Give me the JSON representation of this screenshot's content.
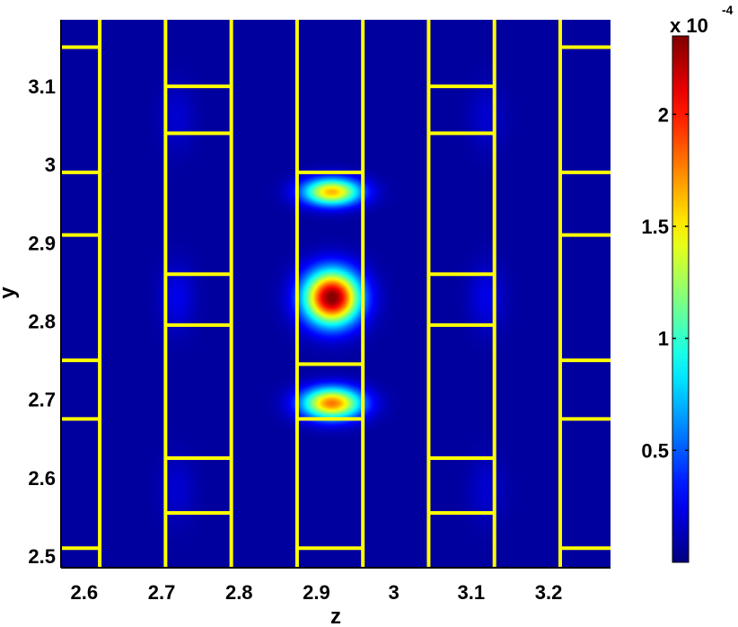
{
  "chart_data": {
    "type": "heatmap",
    "title": "",
    "xlabel": "z",
    "ylabel": "y",
    "xlim": [
      2.57,
      3.28
    ],
    "ylim": [
      2.485,
      3.185
    ],
    "x_ticks": [
      {
        "value": 2.6,
        "label": "2.6"
      },
      {
        "value": 2.7,
        "label": "2.7"
      },
      {
        "value": 2.8,
        "label": "2.8"
      },
      {
        "value": 2.9,
        "label": "2.9"
      },
      {
        "value": 3.0,
        "label": "3"
      },
      {
        "value": 3.1,
        "label": "3.1"
      },
      {
        "value": 3.2,
        "label": "3.2"
      }
    ],
    "y_ticks": [
      {
        "value": 2.5,
        "label": "2.5"
      },
      {
        "value": 2.6,
        "label": "2.6"
      },
      {
        "value": 2.7,
        "label": "2.7"
      },
      {
        "value": 2.8,
        "label": "2.8"
      },
      {
        "value": 2.9,
        "label": "2.9"
      },
      {
        "value": 3.0,
        "label": "3"
      },
      {
        "value": 3.1,
        "label": "3.1"
      }
    ],
    "colormap": "jet",
    "background_color": "#00008b",
    "grid": false,
    "colorbar": {
      "placement": "right",
      "min": 0,
      "max": 0.000235,
      "exponent_label": "x 10",
      "exponent_value": "-4",
      "ticks": [
        {
          "value": 5e-05,
          "label": "0.5"
        },
        {
          "value": 0.0001,
          "label": "1"
        },
        {
          "value": 0.00015,
          "label": "1.5"
        },
        {
          "value": 0.0002,
          "label": "2"
        }
      ]
    },
    "field_peaks": [
      {
        "z": 2.92,
        "y": 2.83,
        "value": 0.000235,
        "sigma_z": 0.025,
        "sigma_y": 0.024
      },
      {
        "z": 2.92,
        "y": 2.965,
        "value": 0.00016,
        "sigma_z": 0.026,
        "sigma_y": 0.012
      },
      {
        "z": 2.92,
        "y": 2.695,
        "value": 0.000175,
        "sigma_z": 0.027,
        "sigma_y": 0.014
      },
      {
        "z": 2.72,
        "y": 2.83,
        "value": 1.8e-05,
        "sigma_z": 0.016,
        "sigma_y": 0.03
      },
      {
        "z": 3.12,
        "y": 2.83,
        "value": 1.8e-05,
        "sigma_z": 0.016,
        "sigma_y": 0.03
      },
      {
        "z": 2.72,
        "y": 3.06,
        "value": 1.2e-05,
        "sigma_z": 0.016,
        "sigma_y": 0.03
      },
      {
        "z": 3.12,
        "y": 3.06,
        "value": 1.2e-05,
        "sigma_z": 0.016,
        "sigma_y": 0.03
      },
      {
        "z": 2.72,
        "y": 2.585,
        "value": 1.2e-05,
        "sigma_z": 0.016,
        "sigma_y": 0.03
      },
      {
        "z": 3.12,
        "y": 2.585,
        "value": 1.2e-05,
        "sigma_z": 0.016,
        "sigma_y": 0.03
      }
    ],
    "structure_outline": {
      "color": "#ffff00",
      "vertical_lines_z": [
        2.62,
        2.705,
        2.79,
        2.875,
        2.96,
        3.045,
        3.13,
        3.215
      ],
      "horizontal_segments": [
        {
          "z": [
            2.57,
            2.62
          ],
          "y": [
            2.51,
            2.75,
            2.91,
            3.15
          ]
        },
        {
          "z": [
            2.57,
            2.62
          ],
          "y": [
            2.675,
            2.99
          ]
        },
        {
          "z": [
            2.705,
            2.79
          ],
          "y": [
            2.555,
            2.625,
            2.795,
            2.86,
            3.04,
            3.1
          ]
        },
        {
          "z": [
            2.875,
            2.96
          ],
          "y": [
            2.51,
            2.675,
            2.745,
            2.99
          ]
        },
        {
          "z": [
            3.045,
            3.13
          ],
          "y": [
            2.555,
            2.625,
            2.795,
            2.86,
            3.04,
            3.1
          ]
        },
        {
          "z": [
            3.215,
            3.28
          ],
          "y": [
            2.51,
            2.675,
            2.75,
            2.91,
            2.99,
            3.15
          ]
        }
      ]
    }
  }
}
